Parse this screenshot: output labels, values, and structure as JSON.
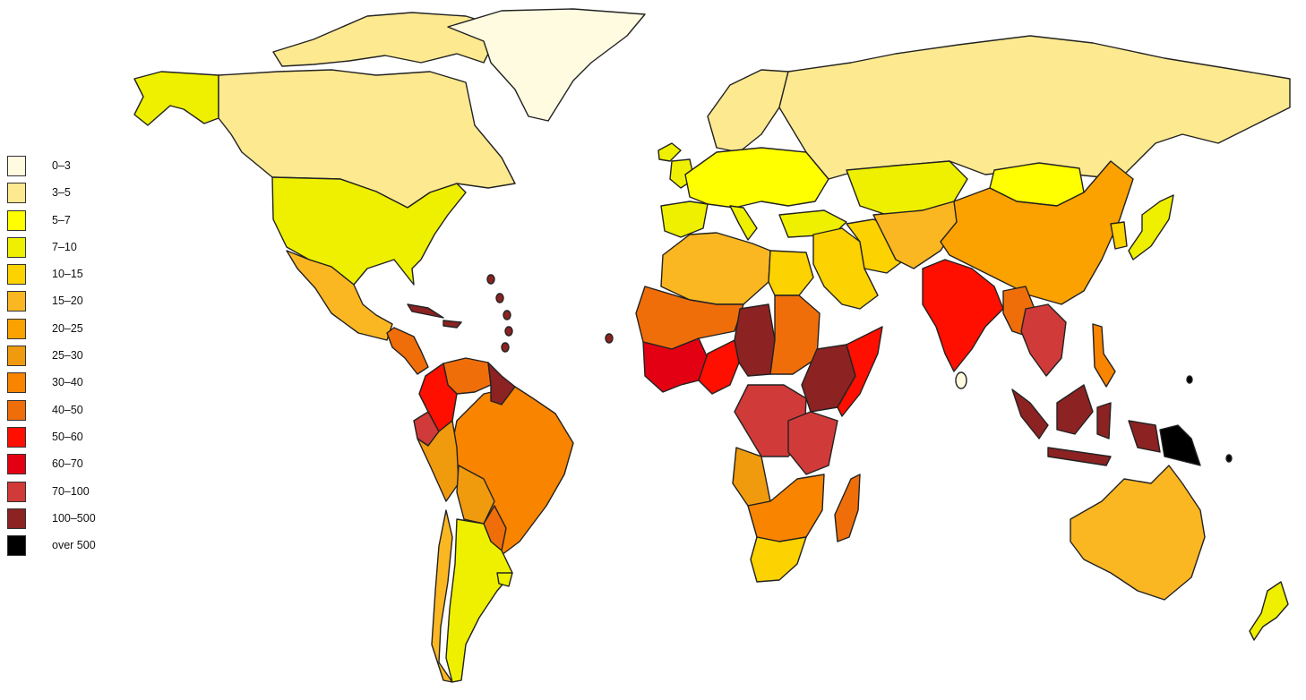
{
  "legend": {
    "items": [
      {
        "label": "0–3",
        "color": "#fffbe0"
      },
      {
        "label": "3–5",
        "color": "#fde990"
      },
      {
        "label": "5–7",
        "color": "#ffff00"
      },
      {
        "label": "7–10",
        "color": "#eef000"
      },
      {
        "label": "10–15",
        "color": "#fcd200"
      },
      {
        "label": "15–20",
        "color": "#fbb722"
      },
      {
        "label": "20–25",
        "color": "#fba100"
      },
      {
        "label": "25–30",
        "color": "#f09a0e"
      },
      {
        "label": "30–40",
        "color": "#f98400"
      },
      {
        "label": "40–50",
        "color": "#f06e0a"
      },
      {
        "label": "50–60",
        "color": "#fe0f00"
      },
      {
        "label": "60–70",
        "color": "#e30012"
      },
      {
        "label": "70–100",
        "color": "#d03a38"
      },
      {
        "label": "100–500",
        "color": "#8c2222"
      },
      {
        "label": "over 500",
        "color": "#000000"
      }
    ]
  },
  "regions": [
    {
      "name": "greenland",
      "level": "0–3"
    },
    {
      "name": "canada",
      "level": "3–5"
    },
    {
      "name": "russia",
      "level": "3–5"
    },
    {
      "name": "arctic-islands",
      "level": "3–5"
    },
    {
      "name": "alaska",
      "level": "7–10"
    },
    {
      "name": "usa",
      "level": "7–10"
    },
    {
      "name": "mexico",
      "level": "15–20"
    },
    {
      "name": "central-america",
      "level": "40–50"
    },
    {
      "name": "caribbean",
      "level": "100–500"
    },
    {
      "name": "colombia",
      "level": "50–60"
    },
    {
      "name": "venezuela",
      "level": "40–50"
    },
    {
      "name": "guyana",
      "level": "100–500"
    },
    {
      "name": "ecuador",
      "level": "70–100"
    },
    {
      "name": "brazil",
      "level": "30–40"
    },
    {
      "name": "peru",
      "level": "25–30"
    },
    {
      "name": "bolivia",
      "level": "25–30"
    },
    {
      "name": "paraguay",
      "level": "40–50"
    },
    {
      "name": "argentina",
      "level": "7–10"
    },
    {
      "name": "chile",
      "level": "15–20"
    },
    {
      "name": "uruguay",
      "level": "7–10"
    },
    {
      "name": "iceland",
      "level": "7–10"
    },
    {
      "name": "scandinavia",
      "level": "3–5"
    },
    {
      "name": "western-europe",
      "level": "5–7"
    },
    {
      "name": "iberia",
      "level": "7–10"
    },
    {
      "name": "uk",
      "level": "7–10"
    },
    {
      "name": "italy",
      "level": "7–10"
    },
    {
      "name": "turkey",
      "level": "7–10"
    },
    {
      "name": "north-africa",
      "level": "15–20"
    },
    {
      "name": "egypt",
      "level": "10–15"
    },
    {
      "name": "sahel",
      "level": "40–50"
    },
    {
      "name": "west-africa",
      "level": "60–70"
    },
    {
      "name": "nigeria",
      "level": "50–60"
    },
    {
      "name": "chad",
      "level": "100–500"
    },
    {
      "name": "sudan",
      "level": "40–50"
    },
    {
      "name": "ethiopia",
      "level": "100–500"
    },
    {
      "name": "somalia",
      "level": "50–60"
    },
    {
      "name": "drc",
      "level": "70–100"
    },
    {
      "name": "tanzania",
      "level": "70–100"
    },
    {
      "name": "angola",
      "level": "25–30"
    },
    {
      "name": "southern-africa",
      "level": "30–40"
    },
    {
      "name": "south-africa",
      "level": "10–15"
    },
    {
      "name": "madagascar",
      "level": "40–50"
    },
    {
      "name": "middle-east",
      "level": "10–15"
    },
    {
      "name": "iran",
      "level": "10–15"
    },
    {
      "name": "central-asia",
      "level": "15–20"
    },
    {
      "name": "kazakhstan",
      "level": "7–10"
    },
    {
      "name": "mongolia",
      "level": "5–7"
    },
    {
      "name": "china",
      "level": "20–25"
    },
    {
      "name": "india",
      "level": "50–60"
    },
    {
      "name": "sri-lanka",
      "level": "0–3"
    },
    {
      "name": "myanmar",
      "level": "40–50"
    },
    {
      "name": "indochina",
      "level": "70–100"
    },
    {
      "name": "japan",
      "level": "7–10"
    },
    {
      "name": "korea",
      "level": "10–15"
    },
    {
      "name": "philippines",
      "level": "30–40"
    },
    {
      "name": "indonesia",
      "level": "100–500"
    },
    {
      "name": "papua-new-guinea",
      "level": "over 500"
    },
    {
      "name": "australia",
      "level": "15–20"
    },
    {
      "name": "new-zealand",
      "level": "7–10"
    }
  ]
}
